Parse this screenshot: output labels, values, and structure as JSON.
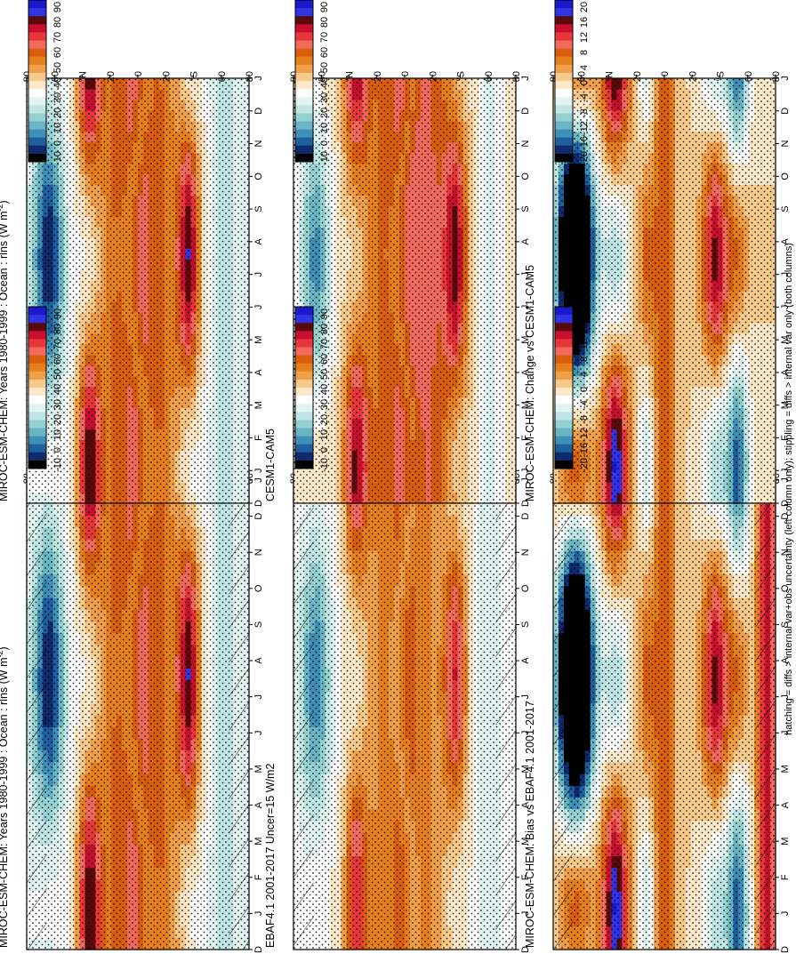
{
  "footnote": "hatching = diffs > internal var+obs uncertainty (left column only); stippling = diffs > internal var only (both columns)",
  "months": [
    "D",
    "J",
    "F",
    "M",
    "A",
    "M",
    "J",
    "J",
    "A",
    "S",
    "O",
    "N",
    "D",
    "J"
  ],
  "lat_ticks": [
    "80",
    "60",
    "°N",
    "20",
    "0",
    "20",
    "°S",
    "60",
    "80"
  ],
  "abs_scale": {
    "labels": [
      "90",
      "80",
      "70",
      "60",
      "50",
      "40",
      "30",
      "20",
      "10",
      "0",
      "-10"
    ],
    "colors": [
      "#1a1acc",
      "#3333e6",
      "#5a0a0a",
      "#c8102e",
      "#e8363a",
      "#f26a5e",
      "#d95f0e",
      "#e6801f",
      "#f0a04a",
      "#f7c98b",
      "#fde9c9",
      "#ffffff",
      "#e2f4f2",
      "#bfe6e4",
      "#96d1d1",
      "#69b5c4",
      "#3f8fb8",
      "#1f5f9e",
      "#102a6e",
      "#000000"
    ]
  },
  "diff_scale": {
    "labels": [
      "20",
      "16",
      "12",
      "8",
      "4",
      "0",
      "-4",
      "-8",
      "-12",
      "-16",
      "-20"
    ],
    "colors": [
      "#1a1acc",
      "#3333e6",
      "#5a0a0a",
      "#c8102e",
      "#e8363a",
      "#f26a5e",
      "#d95f0e",
      "#e6801f",
      "#f0a04a",
      "#f7c98b",
      "#fde9c9",
      "#ffffff",
      "#e2f4f2",
      "#bfe6e4",
      "#96d1d1",
      "#69b5c4",
      "#3f8fb8",
      "#1f5f9e",
      "#102a6e",
      "#000000"
    ]
  },
  "chart_data": [
    {
      "type": "heatmap",
      "column": "left",
      "row": 1,
      "title": "MIROC-ESM-CHEM: Years 1980-1999 : Ocean : rlns (W m",
      "title_sup": "-2",
      "title_end": ")",
      "x": [
        "D",
        "J",
        "F",
        "M",
        "A",
        "M",
        "J",
        "J",
        "A",
        "S",
        "O",
        "N",
        "D",
        "J"
      ],
      "y": [
        "80",
        "60",
        "°N",
        "20",
        "0",
        "20",
        "°S",
        "60",
        "80"
      ],
      "scale": "abs",
      "zlim": [
        -10,
        90
      ],
      "hatching": true,
      "stippling": true
    },
    {
      "type": "heatmap",
      "column": "left",
      "row": 2,
      "title": "EBAF4.1 2001-2017 Uncer=15 W/m2",
      "x": [
        "D",
        "J",
        "F",
        "M",
        "A",
        "M",
        "J",
        "J",
        "A",
        "S",
        "O",
        "N",
        "D",
        "J"
      ],
      "y": [
        "80",
        "60",
        "°N",
        "20",
        "0",
        "20",
        "°S",
        "60",
        "80"
      ],
      "scale": "abs",
      "zlim": [
        -10,
        90
      ],
      "hatching": true,
      "stippling": true
    },
    {
      "type": "heatmap",
      "column": "left",
      "row": 3,
      "title": "MIROC-ESM-CHEM: Bias vs EBAF4.1 2001-2017",
      "x": [
        "D",
        "J",
        "F",
        "M",
        "A",
        "M",
        "J",
        "J",
        "A",
        "S",
        "O",
        "N",
        "D",
        "J"
      ],
      "y": [
        "80",
        "60",
        "°N",
        "20",
        "0",
        "20",
        "°S",
        "60",
        "80"
      ],
      "scale": "diff",
      "zlim": [
        -20,
        20
      ],
      "hatching": true,
      "stippling": true
    },
    {
      "type": "heatmap",
      "column": "right",
      "row": 1,
      "title": "MIROC-ESM-CHEM: Years 1980-1999 : Ocean : rlns (W m",
      "title_sup": "-2",
      "title_end": ")",
      "x": [
        "D",
        "J",
        "F",
        "M",
        "A",
        "M",
        "J",
        "J",
        "A",
        "S",
        "O",
        "N",
        "D",
        "J"
      ],
      "y": [
        "80",
        "60",
        "°N",
        "20",
        "0",
        "20",
        "°S",
        "60",
        "80"
      ],
      "scale": "abs",
      "zlim": [
        -10,
        90
      ],
      "hatching": false,
      "stippling": true
    },
    {
      "type": "heatmap",
      "column": "right",
      "row": 2,
      "title": "CESM1-CAM5",
      "x": [
        "D",
        "J",
        "F",
        "M",
        "A",
        "M",
        "J",
        "J",
        "A",
        "S",
        "O",
        "N",
        "D",
        "J"
      ],
      "y": [
        "80",
        "60",
        "°N",
        "20",
        "0",
        "20",
        "°S",
        "60",
        "80"
      ],
      "scale": "abs",
      "zlim": [
        -10,
        90
      ],
      "hatching": false,
      "stippling": true
    },
    {
      "type": "heatmap",
      "column": "right",
      "row": 3,
      "title": "MIROC-ESM-CHEM: Change vs CESM1-CAM5",
      "x": [
        "D",
        "J",
        "F",
        "M",
        "A",
        "M",
        "J",
        "J",
        "A",
        "S",
        "O",
        "N",
        "D",
        "J"
      ],
      "y": [
        "80",
        "60",
        "°N",
        "20",
        "0",
        "20",
        "°S",
        "60",
        "80"
      ],
      "scale": "diff",
      "zlim": [
        -20,
        20
      ],
      "hatching": false,
      "stippling": true
    }
  ]
}
